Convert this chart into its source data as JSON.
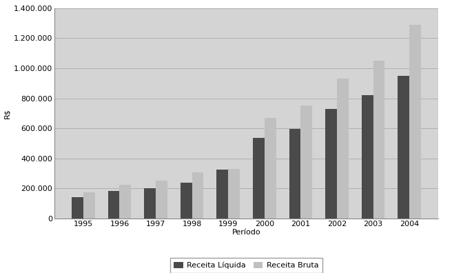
{
  "years": [
    "1995",
    "1996",
    "1997",
    "1998",
    "1999",
    "2000",
    "2001",
    "2002",
    "2003",
    "2004"
  ],
  "receita_liquida": [
    140000,
    185000,
    200000,
    237000,
    325000,
    535000,
    595000,
    730000,
    820000,
    950000
  ],
  "receita_bruta": [
    175000,
    225000,
    250000,
    305000,
    330000,
    670000,
    750000,
    930000,
    1050000,
    1290000
  ],
  "bar_color_liquida": "#4a4a4a",
  "bar_color_bruta": "#c0c0c0",
  "xlabel": "Período",
  "ylim": [
    0,
    1400000
  ],
  "yticks": [
    0,
    200000,
    400000,
    600000,
    800000,
    1000000,
    1200000,
    1400000
  ],
  "ytick_labels": [
    "0",
    "200.000",
    "400.000",
    "600.000",
    "800.000",
    "1.000.000",
    "1.200.000",
    "1.400.000"
  ],
  "legend_liquida": "Receita Líquida",
  "legend_bruta": "Receita Bruta",
  "background_color": "#d4d4d4",
  "bar_width": 0.32,
  "axis_fontsize": 8,
  "tick_fontsize": 8,
  "legend_fontsize": 8
}
